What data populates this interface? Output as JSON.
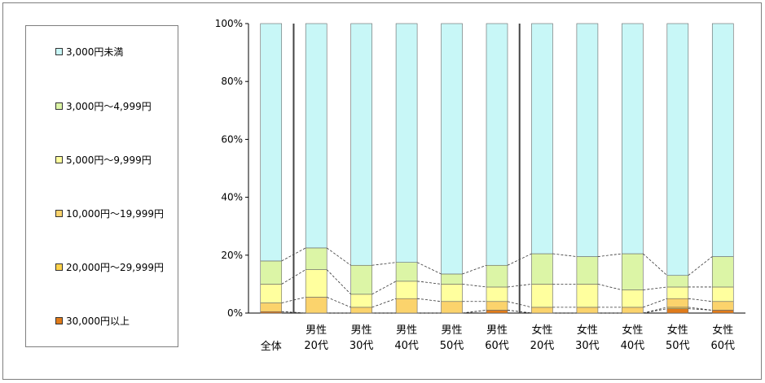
{
  "chart_data": {
    "type": "bar",
    "stacked": true,
    "normalized": true,
    "categories": [
      [
        "全体"
      ],
      [
        "男性",
        "20代"
      ],
      [
        "男性",
        "30代"
      ],
      [
        "男性",
        "40代"
      ],
      [
        "男性",
        "50代"
      ],
      [
        "男性",
        "60代"
      ],
      [
        "女性",
        "20代"
      ],
      [
        "女性",
        "30代"
      ],
      [
        "女性",
        "40代"
      ],
      [
        "女性",
        "50代"
      ],
      [
        "女性",
        "60代"
      ]
    ],
    "y_ticks": [
      "0%",
      "20%",
      "40%",
      "60%",
      "80%",
      "100%"
    ],
    "ylim": [
      0,
      100
    ],
    "legend_position": "left",
    "series": [
      {
        "name": "30,000円以上",
        "color": "#e07b1a",
        "values": [
          0.5,
          0.0,
          0.0,
          0.0,
          0.0,
          1.0,
          0.0,
          0.0,
          0.0,
          1.5,
          1.0
        ]
      },
      {
        "name": "20,000円～29,999円",
        "color": "#ffd24a",
        "values": [
          0.0,
          0.0,
          0.0,
          0.0,
          0.0,
          0.0,
          0.0,
          0.0,
          0.0,
          0.5,
          0.0
        ]
      },
      {
        "name": "10,000円～19,999円",
        "color": "#fbd36c",
        "values": [
          3.0,
          5.5,
          2.0,
          5.0,
          4.0,
          3.0,
          2.0,
          2.0,
          2.0,
          3.0,
          3.0
        ]
      },
      {
        "name": "5,000円～9,999円",
        "color": "#ffff9e",
        "values": [
          6.5,
          9.5,
          4.5,
          6.0,
          6.0,
          5.0,
          8.0,
          8.0,
          6.0,
          4.0,
          5.0
        ]
      },
      {
        "name": "3,000円～4,999円",
        "color": "#dcf5a6",
        "values": [
          8.0,
          7.5,
          10.0,
          6.5,
          3.5,
          7.5,
          10.5,
          9.5,
          12.5,
          4.0,
          10.5
        ]
      },
      {
        "name": "3,000円未満",
        "color": "#c8f7f7",
        "values": [
          82.0,
          77.5,
          83.5,
          82.5,
          86.5,
          83.5,
          79.5,
          80.5,
          79.5,
          87.0,
          80.5
        ]
      }
    ]
  }
}
